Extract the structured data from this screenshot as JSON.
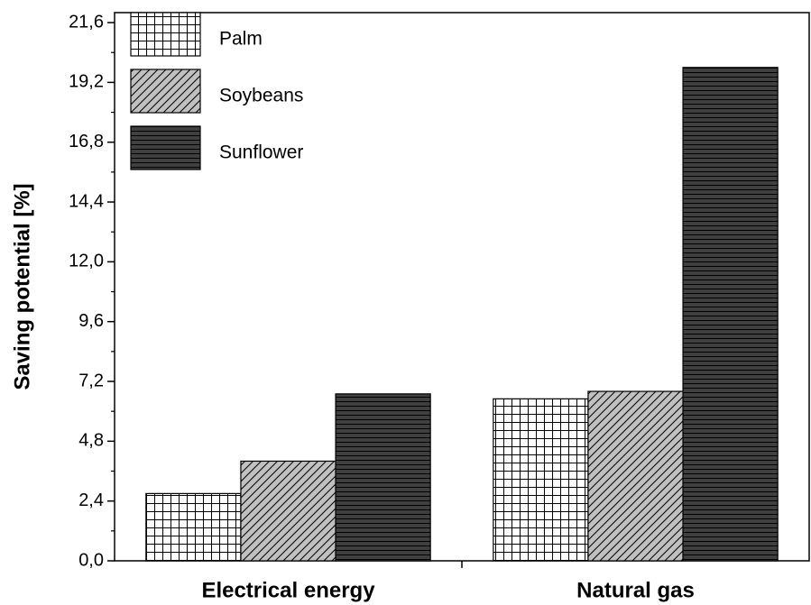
{
  "chart_data": {
    "type": "bar",
    "ylabel": "Saving potential [%]",
    "categories": [
      "Electrical energy",
      "Natural gas"
    ],
    "series": [
      {
        "name": "Palm",
        "color": "#ffffff",
        "values": [
          2.7,
          6.5
        ]
      },
      {
        "name": "Soybeans",
        "color": "#c0c0c0",
        "values": [
          4.0,
          6.8
        ]
      },
      {
        "name": "Sunflower",
        "color": "#404040",
        "values": [
          6.7,
          19.8
        ]
      }
    ],
    "ylim": [
      0,
      22
    ],
    "yticks": [
      {
        "value": 0,
        "label": "0,0"
      },
      {
        "value": 2.4,
        "label": "2,4"
      },
      {
        "value": 4.8,
        "label": "4,8"
      },
      {
        "value": 7.2,
        "label": "7,2"
      },
      {
        "value": 9.6,
        "label": "9,6"
      },
      {
        "value": 12,
        "label": "12,0"
      },
      {
        "value": 14.4,
        "label": "14,4"
      },
      {
        "value": 16.8,
        "label": "16,8"
      },
      {
        "value": 19.2,
        "label": "19,2"
      },
      {
        "value": 21.6,
        "label": "21,6"
      }
    ],
    "legend": "upper left"
  }
}
